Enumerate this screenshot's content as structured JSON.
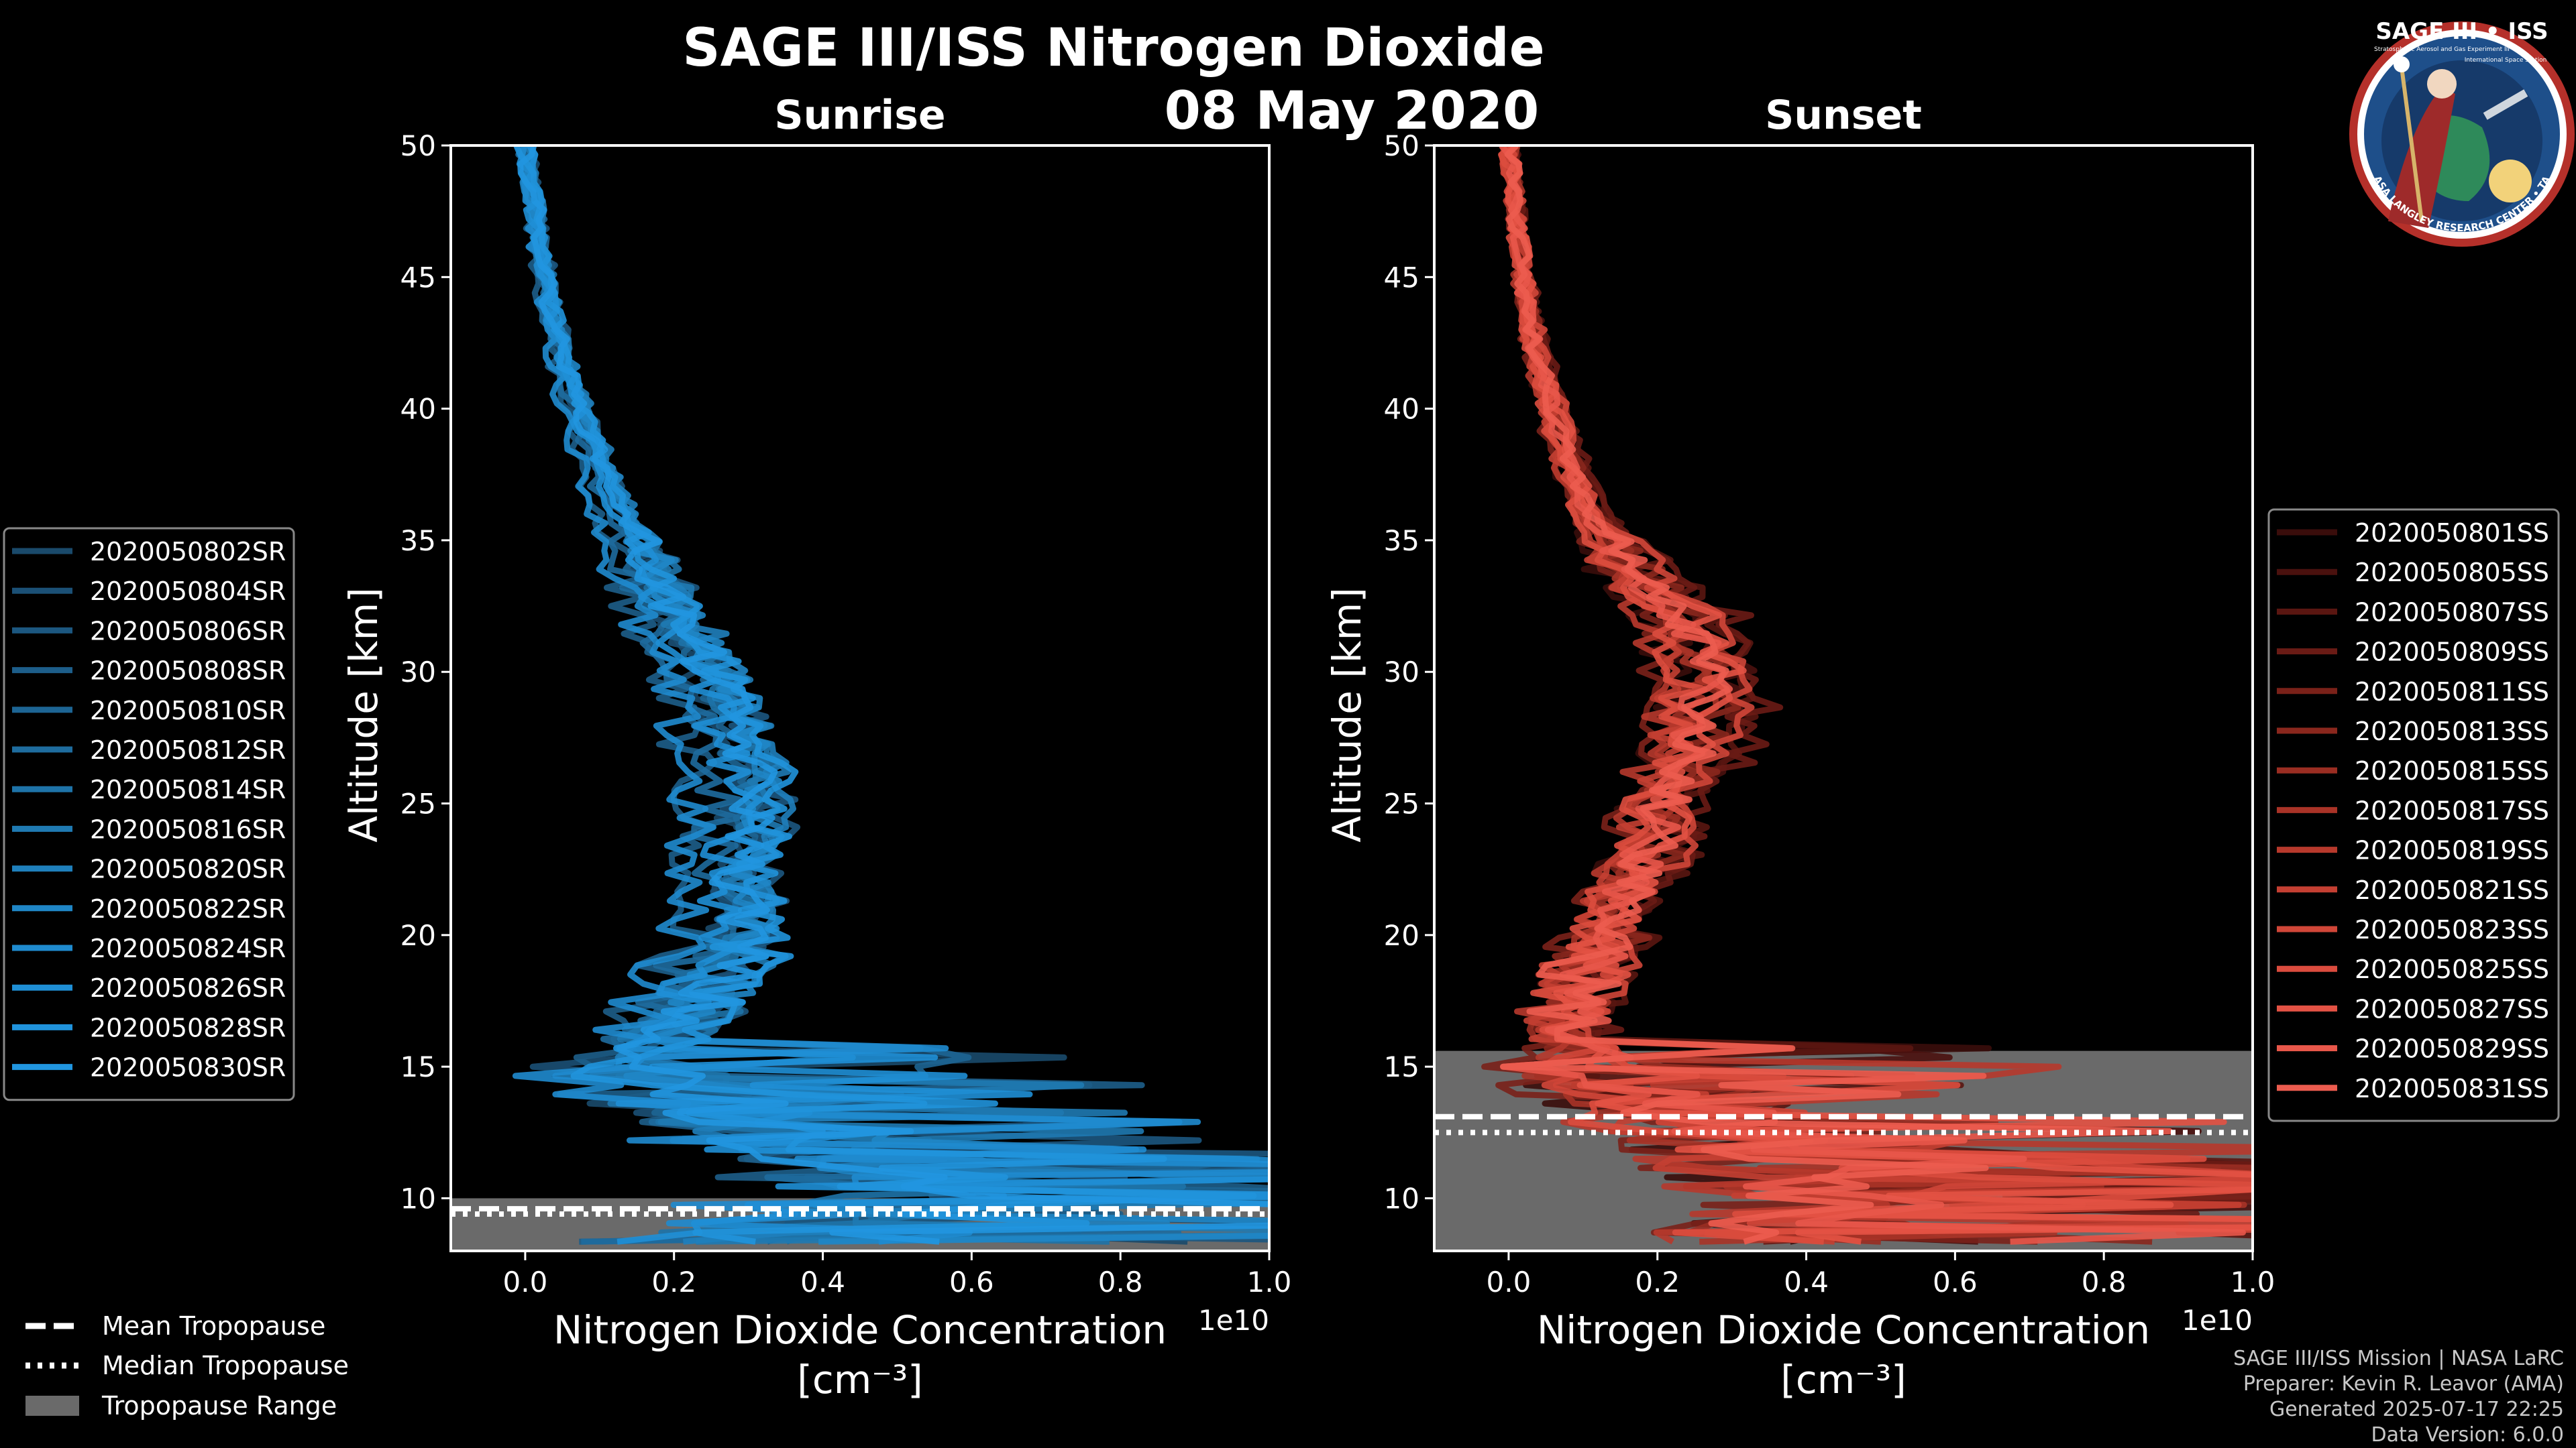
{
  "page": {
    "title_line1": "SAGE III/ISS Nitrogen Dioxide",
    "title_line2": "08 May 2020"
  },
  "logo": {
    "title": "SAGE III • ISS",
    "subtitle": "Stratospheric Aerosol and Gas Experiment III",
    "iss": "International Space Station",
    "ring": "BALL • NASA LANGLEY RESEARCH CENTER • TAS-I • ESA"
  },
  "credits": {
    "line1": "SAGE III/ISS Mission | NASA LaRC",
    "line2": "Preparer: Kevin R. Leavor (AMA)",
    "line3": "Generated 2025-07-17 22:25",
    "line4": "Data Version: 6.0.0"
  },
  "colors": {
    "background": "#000000",
    "sunrise_base": "#1f8fd6",
    "sunset_base": "#e8574a",
    "tropopause_fill": "#6a6a6a",
    "axis": "#ffffff"
  },
  "tropopause_legend": {
    "mean": "Mean Tropopause",
    "median": "Median Tropopause",
    "range": "Tropopause Range"
  },
  "chart_data": [
    {
      "type": "line",
      "id": "sunrise",
      "title": "Sunrise",
      "xlabel": "Nitrogen Dioxide Concentration",
      "xlabel_units": "[cm⁻³]",
      "x_scale_label": "1e10",
      "ylabel": "Altitude [km]",
      "xlim": [
        -0.1,
        1.0
      ],
      "ylim": [
        8,
        50
      ],
      "xticks": [
        0.0,
        0.2,
        0.4,
        0.6,
        0.8,
        1.0
      ],
      "xtick_labels": [
        "0.0",
        "0.2",
        "0.4",
        "0.6",
        "0.8",
        "1.0"
      ],
      "yticks": [
        10,
        15,
        20,
        25,
        30,
        35,
        40,
        45,
        50
      ],
      "ytick_labels": [
        "10",
        "15",
        "20",
        "25",
        "30",
        "35",
        "40",
        "45",
        "50"
      ],
      "legend_position": "left",
      "series_names": [
        "2020050802SR",
        "2020050804SR",
        "2020050806SR",
        "2020050808SR",
        "2020050810SR",
        "2020050812SR",
        "2020050814SR",
        "2020050816SR",
        "2020050820SR",
        "2020050822SR",
        "2020050824SR",
        "2020050826SR",
        "2020050828SR",
        "2020050830SR"
      ],
      "series_colors": [
        "#1a4a6b",
        "#1b5076",
        "#1c5780",
        "#1d5e8a",
        "#1d6594",
        "#1e6c9e",
        "#1e73a8",
        "#1f7ab2",
        "#1f80bc",
        "#1f86c6",
        "#1f8bcf",
        "#1f8fd6",
        "#2093dc",
        "#2196e0"
      ],
      "mean_profile": {
        "altitude": [
          8.5,
          9,
          10,
          11,
          12,
          13,
          14,
          15,
          16,
          17,
          18,
          19,
          20,
          21,
          22,
          23,
          24,
          25,
          26,
          28,
          30,
          32,
          34,
          36,
          38,
          40,
          42,
          44,
          46,
          48,
          50
        ],
        "concentration": [
          0.22,
          0.3,
          0.45,
          0.42,
          0.35,
          0.25,
          0.18,
          0.12,
          0.15,
          0.2,
          0.22,
          0.24,
          0.26,
          0.26,
          0.25,
          0.26,
          0.27,
          0.27,
          0.27,
          0.25,
          0.22,
          0.18,
          0.15,
          0.115,
          0.09,
          0.065,
          0.045,
          0.03,
          0.02,
          0.01,
          0.0
        ]
      },
      "tropopause": {
        "mean": 9.6,
        "median": 9.4,
        "range": [
          8.0,
          10.0
        ]
      }
    },
    {
      "type": "line",
      "id": "sunset",
      "title": "Sunset",
      "xlabel": "Nitrogen Dioxide Concentration",
      "xlabel_units": "[cm⁻³]",
      "x_scale_label": "1e10",
      "ylabel": "Altitude [km]",
      "xlim": [
        -0.1,
        1.0
      ],
      "ylim": [
        8,
        50
      ],
      "xticks": [
        0.0,
        0.2,
        0.4,
        0.6,
        0.8,
        1.0
      ],
      "xtick_labels": [
        "0.0",
        "0.2",
        "0.4",
        "0.6",
        "0.8",
        "1.0"
      ],
      "yticks": [
        10,
        15,
        20,
        25,
        30,
        35,
        40,
        45,
        50
      ],
      "ytick_labels": [
        "10",
        "15",
        "20",
        "25",
        "30",
        "35",
        "40",
        "45",
        "50"
      ],
      "legend_position": "right",
      "series_names": [
        "2020050801SS",
        "2020050805SS",
        "2020050807SS",
        "2020050809SS",
        "2020050811SS",
        "2020050813SS",
        "2020050815SS",
        "2020050817SS",
        "2020050819SS",
        "2020050821SS",
        "2020050823SS",
        "2020050825SS",
        "2020050827SS",
        "2020050829SS",
        "2020050831SS"
      ],
      "series_colors": [
        "#3a0d0b",
        "#4a110e",
        "#5a1611",
        "#6a1b15",
        "#7a2119",
        "#8a271d",
        "#9a2d22",
        "#a93327",
        "#b7392c",
        "#c43f32",
        "#d04638",
        "#db4c3e",
        "#e35244",
        "#e8574a",
        "#ec5c4f"
      ],
      "mean_profile": {
        "altitude": [
          8.5,
          9,
          10,
          11,
          12,
          13,
          14,
          15,
          16,
          17,
          18,
          19,
          20,
          21,
          22,
          23,
          24,
          25,
          26,
          27,
          28,
          29,
          30,
          31,
          32,
          33,
          34,
          36,
          38,
          40,
          42,
          44,
          46,
          48,
          50
        ],
        "concentration": [
          0.35,
          0.4,
          0.45,
          0.4,
          0.32,
          0.25,
          0.18,
          0.12,
          0.09,
          0.08,
          0.09,
          0.11,
          0.13,
          0.15,
          0.17,
          0.19,
          0.2,
          0.21,
          0.23,
          0.25,
          0.26,
          0.27,
          0.27,
          0.26,
          0.24,
          0.2,
          0.16,
          0.11,
          0.08,
          0.06,
          0.04,
          0.025,
          0.015,
          0.008,
          0.0
        ]
      },
      "tropopause": {
        "mean": 13.1,
        "median": 12.5,
        "range": [
          8.0,
          15.6
        ]
      }
    }
  ]
}
